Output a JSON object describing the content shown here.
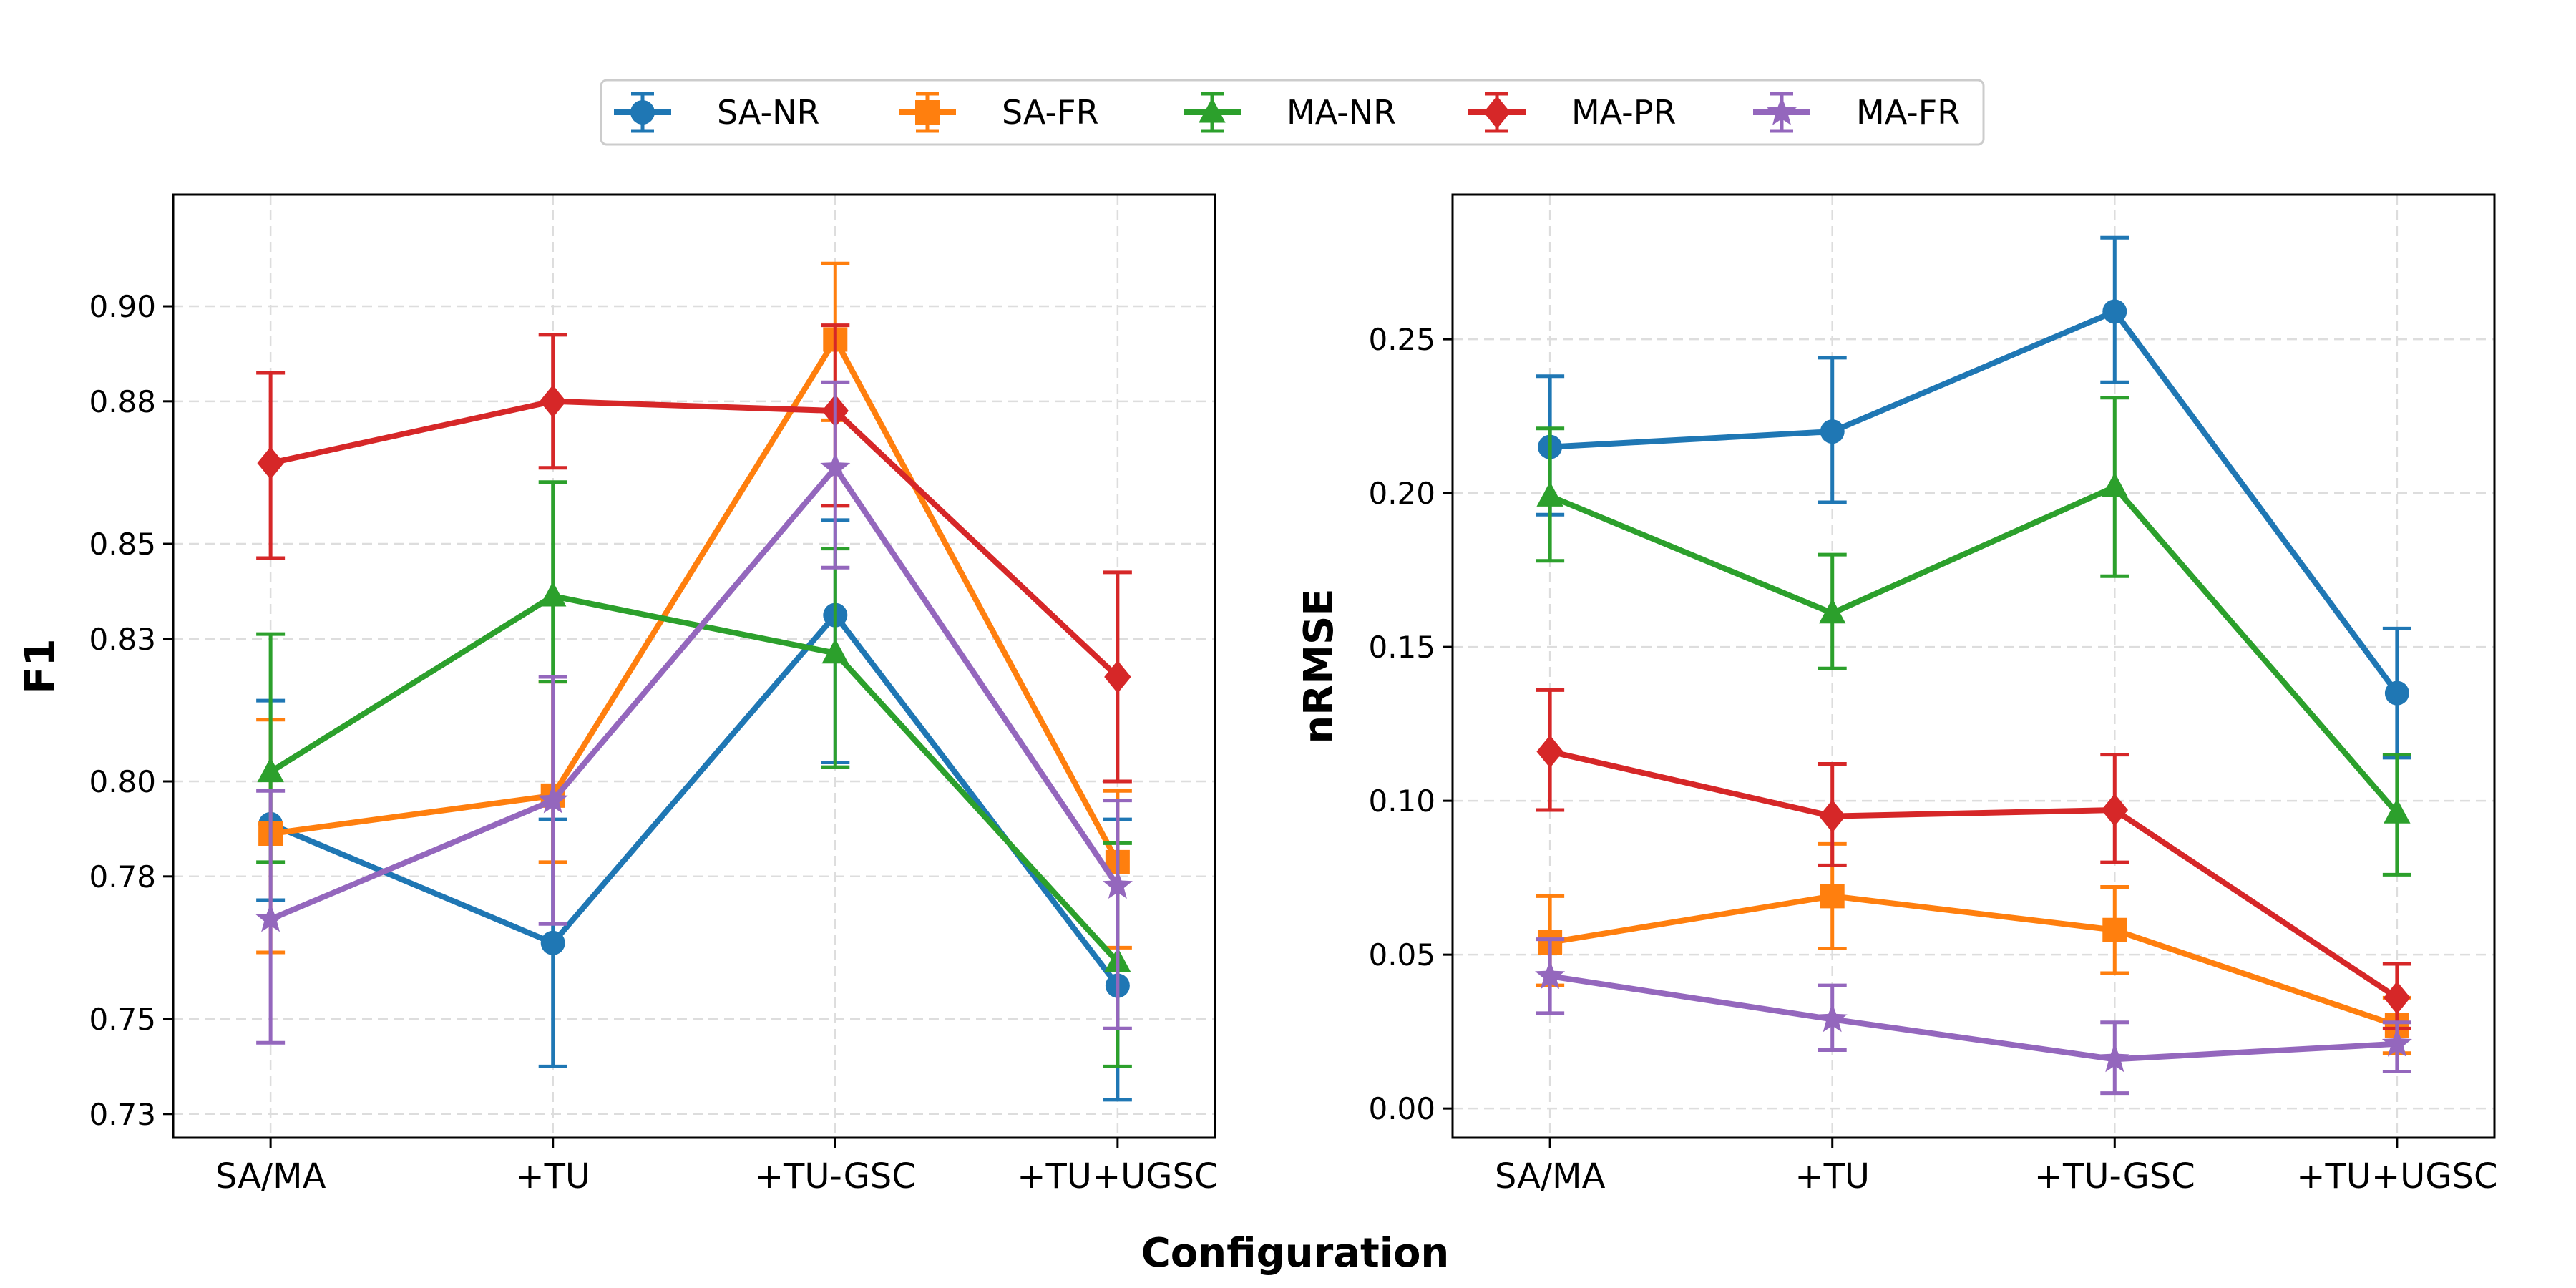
{
  "figure": {
    "xlabel": "Configuration",
    "series_colors": {
      "SA-NR": "#1f77b4",
      "SA-FR": "#ff7f0e",
      "MA-NR": "#2ca02c",
      "MA-PR": "#d62728",
      "MA-FR": "#9467bd"
    },
    "series_markers": {
      "SA-NR": "circle",
      "SA-FR": "square",
      "MA-NR": "triangle",
      "MA-PR": "diamond",
      "MA-FR": "star"
    }
  },
  "legend": {
    "placement": "top-center",
    "entries": [
      "SA-NR",
      "SA-FR",
      "MA-NR",
      "MA-PR",
      "MA-FR"
    ]
  },
  "chart_data": [
    {
      "type": "line",
      "title": "",
      "xlabel": "",
      "ylabel": "F1",
      "categories": [
        "SA/MA",
        "+TU",
        "+TU-GSC",
        "+TU+UGSC"
      ],
      "ylim": [
        0.725,
        0.9235
      ],
      "yticks": [
        0.73,
        0.75,
        0.78,
        0.8,
        0.83,
        0.85,
        0.88,
        0.9
      ],
      "ytick_labels": [
        "0.73",
        "0.75",
        "0.78",
        "0.80",
        "0.83",
        "0.85",
        "0.88",
        "0.90"
      ],
      "grid": true,
      "series": [
        {
          "name": "SA-NR",
          "values": [
            0.791,
            0.766,
            0.835,
            0.757
          ],
          "err_low": [
            0.775,
            0.74,
            0.804,
            0.733
          ],
          "err_high": [
            0.817,
            0.792,
            0.855,
            0.792
          ]
        },
        {
          "name": "SA-FR",
          "values": [
            0.789,
            0.797,
            0.893,
            0.783
          ],
          "err_low": [
            0.764,
            0.783,
            0.876,
            0.765
          ],
          "err_high": [
            0.813,
            0.821,
            0.909,
            0.798
          ]
        },
        {
          "name": "MA-NR",
          "values": [
            0.802,
            0.839,
            0.827,
            0.762
          ],
          "err_low": [
            0.783,
            0.821,
            0.803,
            0.74
          ],
          "err_high": [
            0.831,
            0.863,
            0.849,
            0.787
          ]
        },
        {
          "name": "MA-PR",
          "values": [
            0.867,
            0.88,
            0.878,
            0.822
          ],
          "err_low": [
            0.847,
            0.866,
            0.858,
            0.8
          ],
          "err_high": [
            0.886,
            0.894,
            0.896,
            0.844
          ]
        },
        {
          "name": "MA-FR",
          "values": [
            0.771,
            0.796,
            0.866,
            0.778
          ],
          "err_low": [
            0.745,
            0.77,
            0.845,
            0.748
          ],
          "err_high": [
            0.798,
            0.822,
            0.884,
            0.796
          ]
        }
      ]
    },
    {
      "type": "line",
      "title": "",
      "xlabel": "",
      "ylabel": "nRMSE",
      "categories": [
        "SA/MA",
        "+TU",
        "+TU-GSC",
        "+TU+UGSC"
      ],
      "ylim": [
        -0.0095,
        0.297
      ],
      "yticks": [
        0.0,
        0.05,
        0.1,
        0.15,
        0.2,
        0.25
      ],
      "ytick_labels": [
        "0.00",
        "0.05",
        "0.10",
        "0.15",
        "0.20",
        "0.25"
      ],
      "grid": true,
      "series": [
        {
          "name": "SA-NR",
          "values": [
            0.215,
            0.22,
            0.259,
            0.135
          ],
          "err_low": [
            0.193,
            0.197,
            0.236,
            0.114
          ],
          "err_high": [
            0.238,
            0.244,
            0.283,
            0.156
          ]
        },
        {
          "name": "SA-FR",
          "values": [
            0.054,
            0.069,
            0.058,
            0.027
          ],
          "err_low": [
            0.04,
            0.052,
            0.044,
            0.018
          ],
          "err_high": [
            0.069,
            0.086,
            0.072,
            0.036
          ]
        },
        {
          "name": "MA-NR",
          "values": [
            0.199,
            0.161,
            0.202,
            0.096
          ],
          "err_low": [
            0.178,
            0.143,
            0.173,
            0.076
          ],
          "err_high": [
            0.221,
            0.18,
            0.231,
            0.115
          ]
        },
        {
          "name": "MA-PR",
          "values": [
            0.116,
            0.095,
            0.097,
            0.036
          ],
          "err_low": [
            0.097,
            0.079,
            0.08,
            0.026
          ],
          "err_high": [
            0.136,
            0.112,
            0.115,
            0.047
          ]
        },
        {
          "name": "MA-FR",
          "values": [
            0.043,
            0.029,
            0.016,
            0.021
          ],
          "err_low": [
            0.031,
            0.019,
            0.005,
            0.012
          ],
          "err_high": [
            0.055,
            0.04,
            0.028,
            0.028
          ]
        }
      ]
    }
  ]
}
